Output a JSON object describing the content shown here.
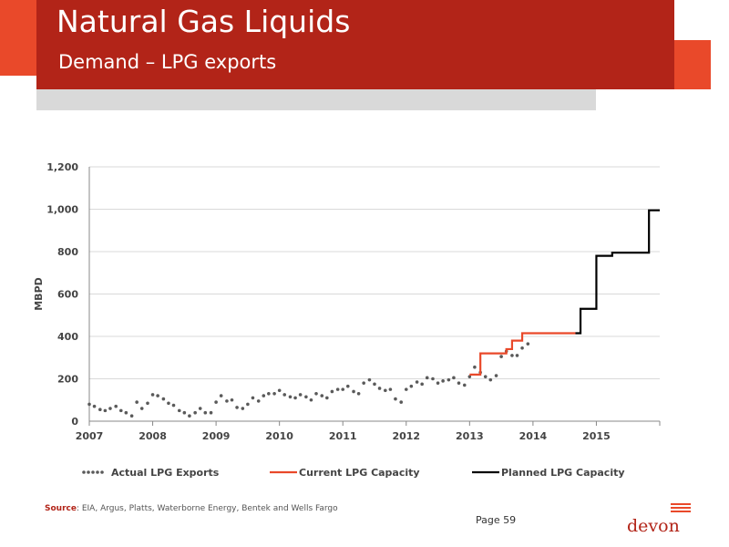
{
  "header": {
    "title": "Natural Gas Liquids",
    "subtitle": "Demand – LPG exports"
  },
  "footer": {
    "source_label": "Source",
    "source_text": ": EIA, Argus, Platts, Waterborne Energy, Bentek and Wells Fargo",
    "page_label": "Page 59",
    "logo_text": "devon"
  },
  "colors": {
    "header_red": "#b22418",
    "accent_orange": "#e9492a",
    "actual_series": "#5a5a5a",
    "current_series": "#e9492a",
    "planned_series": "#000000"
  },
  "chart_data": {
    "type": "line",
    "ylabel": "MBPD",
    "xlabel": "",
    "ylim": [
      0,
      1200
    ],
    "xlim": [
      2007,
      2016
    ],
    "yticks": [
      0,
      200,
      400,
      600,
      800,
      1000,
      1200
    ],
    "ytick_labels": [
      "0",
      "200",
      "400",
      "600",
      "800",
      "1,000",
      "1,200"
    ],
    "xticks": [
      2007,
      2008,
      2009,
      2010,
      2011,
      2012,
      2013,
      2014,
      2015
    ],
    "xtick_labels": [
      "2007",
      "2008",
      "2009",
      "2010",
      "2011",
      "2012",
      "2013",
      "2014",
      "2015"
    ],
    "grid": true,
    "legend_position": "bottom",
    "series": [
      {
        "name": "Actual LPG Exports",
        "style": "dotted",
        "x": [
          2007.0,
          2007.08,
          2007.17,
          2007.25,
          2007.33,
          2007.42,
          2007.5,
          2007.58,
          2007.67,
          2007.75,
          2007.83,
          2007.92,
          2008.0,
          2008.08,
          2008.17,
          2008.25,
          2008.33,
          2008.42,
          2008.5,
          2008.58,
          2008.67,
          2008.75,
          2008.83,
          2008.92,
          2009.0,
          2009.08,
          2009.17,
          2009.25,
          2009.33,
          2009.42,
          2009.5,
          2009.58,
          2009.67,
          2009.75,
          2009.83,
          2009.92,
          2010.0,
          2010.08,
          2010.17,
          2010.25,
          2010.33,
          2010.42,
          2010.5,
          2010.58,
          2010.67,
          2010.75,
          2010.83,
          2010.92,
          2011.0,
          2011.08,
          2011.17,
          2011.25,
          2011.33,
          2011.42,
          2011.5,
          2011.58,
          2011.67,
          2011.75,
          2011.83,
          2011.92,
          2012.0,
          2012.08,
          2012.17,
          2012.25,
          2012.33,
          2012.42,
          2012.5,
          2012.58,
          2012.67,
          2012.75,
          2012.83,
          2012.92,
          2013.0,
          2013.08,
          2013.17,
          2013.25,
          2013.33,
          2013.42,
          2013.5,
          2013.58,
          2013.67,
          2013.75,
          2013.83,
          2013.92
        ],
        "values": [
          80,
          70,
          55,
          50,
          60,
          70,
          50,
          40,
          25,
          90,
          60,
          85,
          125,
          120,
          105,
          85,
          75,
          50,
          40,
          25,
          40,
          60,
          40,
          40,
          90,
          120,
          95,
          100,
          65,
          60,
          80,
          110,
          95,
          120,
          130,
          130,
          145,
          125,
          115,
          110,
          125,
          115,
          100,
          130,
          120,
          110,
          140,
          150,
          150,
          165,
          140,
          130,
          180,
          195,
          175,
          155,
          145,
          150,
          105,
          90,
          150,
          165,
          185,
          175,
          205,
          200,
          180,
          190,
          195,
          205,
          180,
          170,
          210,
          255,
          230,
          210,
          195,
          215,
          305,
          330,
          310,
          310,
          345,
          365
        ]
      },
      {
        "name": "Current LPG Capacity",
        "style": "step",
        "x": [
          2013.0,
          2013.08,
          2013.17,
          2013.25,
          2013.5,
          2013.58,
          2013.67,
          2013.75,
          2013.83,
          2013.92,
          2014.0,
          2014.67
        ],
        "values": [
          220,
          220,
          320,
          320,
          320,
          340,
          380,
          380,
          415,
          415,
          415,
          415
        ]
      },
      {
        "name": "Planned LPG Capacity",
        "style": "step",
        "x": [
          2014.67,
          2014.75,
          2014.83,
          2014.92,
          2015.0,
          2015.17,
          2015.25,
          2015.75,
          2015.83,
          2016.0
        ],
        "values": [
          415,
          530,
          530,
          530,
          780,
          780,
          795,
          795,
          995,
          995
        ]
      }
    ]
  }
}
